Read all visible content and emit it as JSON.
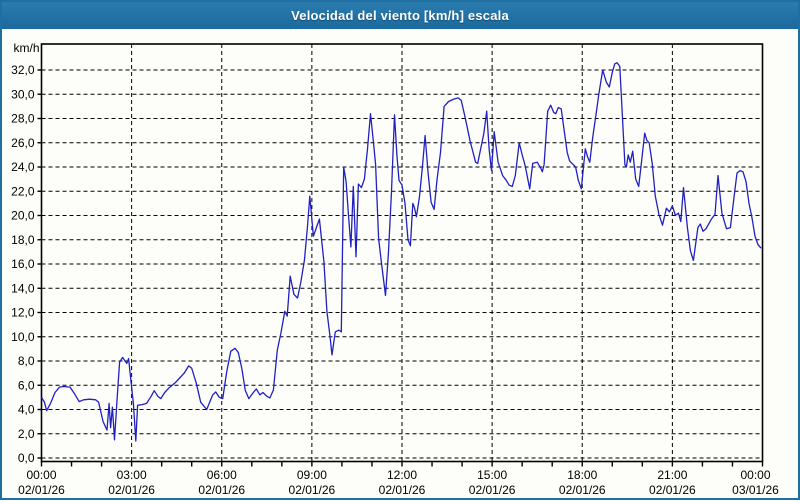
{
  "window": {
    "title": "Velocidad del viento [km/h] escala"
  },
  "colors": {
    "titlebar": "#1f6fa3",
    "window_border": "#1f6fa3",
    "plot_background": "#fdfdfa",
    "grid": "#000000",
    "axis": "#000000",
    "line": "#2121c0",
    "label_text": "#000000",
    "title_text": "#ffffff"
  },
  "chart_data": {
    "type": "line",
    "title": "Velocidad del viento [km/h] escala",
    "ylabel": "km/h",
    "xlabel": "",
    "ylim": [
      0,
      34.1
    ],
    "xlim_hours": [
      0,
      24
    ],
    "grid": "dashed",
    "legend": "none",
    "y_ticks": [
      0,
      2,
      4,
      6,
      8,
      10,
      12,
      14,
      16,
      18,
      20,
      22,
      24,
      26,
      28,
      30,
      32
    ],
    "y_tick_labels": [
      "0,0",
      "2,0",
      "4,0",
      "6,0",
      "8,0",
      "10,0",
      "12,0",
      "14,0",
      "16,0",
      "18,0",
      "20,0",
      "22,0",
      "24,0",
      "26,0",
      "28,0",
      "30,0",
      "32,0"
    ],
    "x_major_ticks": [
      {
        "hour": 0,
        "time": "00:00",
        "date": "02/01/26"
      },
      {
        "hour": 3,
        "time": "03:00",
        "date": "02/01/26"
      },
      {
        "hour": 6,
        "time": "06:00",
        "date": "02/01/26"
      },
      {
        "hour": 9,
        "time": "09:00",
        "date": "02/01/26"
      },
      {
        "hour": 12,
        "time": "12:00",
        "date": "02/01/26"
      },
      {
        "hour": 15,
        "time": "15:00",
        "date": "02/01/26"
      },
      {
        "hour": 18,
        "time": "18:00",
        "date": "02/01/26"
      },
      {
        "hour": 21,
        "time": "21:00",
        "date": "02/01/26"
      },
      {
        "hour": 24,
        "time": "00:00",
        "date": "03/01/26"
      }
    ],
    "x_minor_tick_every_hours": 1,
    "series": [
      {
        "name": "Velocidad del viento",
        "points": [
          [
            0,
            5.0
          ],
          [
            0.1,
            4.6
          ],
          [
            0.17,
            3.9
          ],
          [
            0.3,
            4.5
          ],
          [
            0.45,
            5.4
          ],
          [
            0.6,
            5.85
          ],
          [
            0.75,
            5.9
          ],
          [
            0.95,
            5.85
          ],
          [
            1.1,
            5.3
          ],
          [
            1.25,
            4.65
          ],
          [
            1.4,
            4.8
          ],
          [
            1.6,
            4.85
          ],
          [
            1.8,
            4.8
          ],
          [
            1.9,
            4.6
          ],
          [
            2.05,
            3.0
          ],
          [
            2.18,
            2.3
          ],
          [
            2.25,
            4.5
          ],
          [
            2.3,
            2.5
          ],
          [
            2.36,
            4.2
          ],
          [
            2.43,
            1.5
          ],
          [
            2.52,
            5.0
          ],
          [
            2.6,
            7.9
          ],
          [
            2.7,
            8.3
          ],
          [
            2.78,
            8.0
          ],
          [
            2.84,
            7.8
          ],
          [
            2.9,
            8.2
          ],
          [
            2.98,
            6.3
          ],
          [
            3.06,
            4.5
          ],
          [
            3.14,
            1.4
          ],
          [
            3.2,
            4.35
          ],
          [
            3.35,
            4.4
          ],
          [
            3.5,
            4.5
          ],
          [
            3.65,
            5.1
          ],
          [
            3.75,
            5.55
          ],
          [
            3.87,
            5.1
          ],
          [
            3.97,
            4.9
          ],
          [
            4.1,
            5.4
          ],
          [
            4.25,
            5.8
          ],
          [
            4.45,
            6.2
          ],
          [
            4.6,
            6.6
          ],
          [
            4.75,
            7.0
          ],
          [
            4.9,
            7.6
          ],
          [
            5.0,
            7.4
          ],
          [
            5.15,
            6.2
          ],
          [
            5.3,
            4.6
          ],
          [
            5.5,
            4.0
          ],
          [
            5.7,
            5.2
          ],
          [
            5.8,
            5.45
          ],
          [
            5.92,
            5.0
          ],
          [
            6.03,
            4.9
          ],
          [
            6.17,
            7.2
          ],
          [
            6.3,
            8.8
          ],
          [
            6.44,
            9.05
          ],
          [
            6.55,
            8.7
          ],
          [
            6.67,
            7.35
          ],
          [
            6.78,
            5.6
          ],
          [
            6.9,
            4.9
          ],
          [
            7.02,
            5.3
          ],
          [
            7.15,
            5.7
          ],
          [
            7.27,
            5.2
          ],
          [
            7.37,
            5.4
          ],
          [
            7.5,
            5.1
          ],
          [
            7.6,
            4.95
          ],
          [
            7.72,
            5.6
          ],
          [
            7.85,
            8.9
          ],
          [
            7.97,
            10.3
          ],
          [
            8.1,
            12.1
          ],
          [
            8.18,
            11.7
          ],
          [
            8.28,
            15.0
          ],
          [
            8.4,
            13.5
          ],
          [
            8.52,
            13.2
          ],
          [
            8.63,
            14.5
          ],
          [
            8.75,
            16.3
          ],
          [
            8.85,
            19.0
          ],
          [
            8.93,
            21.6
          ],
          [
            9.05,
            18.3
          ],
          [
            9.15,
            19.0
          ],
          [
            9.25,
            19.7
          ],
          [
            9.4,
            16.2
          ],
          [
            9.5,
            12.1
          ],
          [
            9.6,
            10.1
          ],
          [
            9.67,
            8.5
          ],
          [
            9.78,
            10.4
          ],
          [
            9.9,
            10.55
          ],
          [
            9.98,
            10.4
          ],
          [
            10.06,
            24.0
          ],
          [
            10.14,
            22.8
          ],
          [
            10.22,
            20.0
          ],
          [
            10.3,
            17.4
          ],
          [
            10.38,
            22.4
          ],
          [
            10.47,
            16.6
          ],
          [
            10.55,
            22.6
          ],
          [
            10.65,
            22.3
          ],
          [
            10.75,
            23.0
          ],
          [
            10.85,
            25.5
          ],
          [
            10.95,
            28.4
          ],
          [
            11.05,
            26.0
          ],
          [
            11.12,
            24.2
          ],
          [
            11.22,
            18.1
          ],
          [
            11.32,
            16.0
          ],
          [
            11.45,
            13.4
          ],
          [
            11.55,
            17.0
          ],
          [
            11.65,
            22.0
          ],
          [
            11.75,
            28.3
          ],
          [
            11.83,
            25.0
          ],
          [
            11.9,
            22.9
          ],
          [
            12.0,
            22.5
          ],
          [
            12.1,
            21.0
          ],
          [
            12.2,
            18.0
          ],
          [
            12.28,
            17.5
          ],
          [
            12.36,
            21.0
          ],
          [
            12.42,
            20.6
          ],
          [
            12.48,
            19.9
          ],
          [
            12.58,
            21.5
          ],
          [
            12.68,
            24.0
          ],
          [
            12.77,
            26.6
          ],
          [
            12.87,
            23.5
          ],
          [
            12.97,
            21.1
          ],
          [
            13.07,
            20.5
          ],
          [
            13.17,
            23.0
          ],
          [
            13.28,
            25.2
          ],
          [
            13.4,
            29.0
          ],
          [
            13.55,
            29.4
          ],
          [
            13.72,
            29.6
          ],
          [
            13.87,
            29.7
          ],
          [
            13.97,
            29.5
          ],
          [
            14.1,
            28.1
          ],
          [
            14.27,
            26.1
          ],
          [
            14.45,
            24.4
          ],
          [
            14.52,
            24.3
          ],
          [
            14.62,
            25.5
          ],
          [
            14.72,
            26.7
          ],
          [
            14.82,
            28.6
          ],
          [
            14.9,
            25.5
          ],
          [
            14.98,
            23.7
          ],
          [
            15.07,
            26.9
          ],
          [
            15.2,
            24.4
          ],
          [
            15.35,
            23.3
          ],
          [
            15.47,
            22.9
          ],
          [
            15.57,
            22.5
          ],
          [
            15.67,
            22.4
          ],
          [
            15.77,
            23.3
          ],
          [
            15.9,
            26.0
          ],
          [
            16.0,
            25.0
          ],
          [
            16.1,
            24.1
          ],
          [
            16.25,
            22.2
          ],
          [
            16.35,
            24.3
          ],
          [
            16.5,
            24.4
          ],
          [
            16.62,
            23.9
          ],
          [
            16.67,
            23.6
          ],
          [
            16.73,
            24.2
          ],
          [
            16.85,
            28.6
          ],
          [
            16.95,
            29.1
          ],
          [
            17.05,
            28.5
          ],
          [
            17.12,
            28.4
          ],
          [
            17.2,
            28.9
          ],
          [
            17.3,
            28.8
          ],
          [
            17.4,
            27.0
          ],
          [
            17.5,
            25.2
          ],
          [
            17.58,
            24.5
          ],
          [
            17.7,
            24.2
          ],
          [
            17.78,
            24.0
          ],
          [
            17.87,
            22.9
          ],
          [
            17.97,
            22.2
          ],
          [
            18.1,
            25.5
          ],
          [
            18.18,
            24.8
          ],
          [
            18.25,
            24.4
          ],
          [
            18.35,
            26.5
          ],
          [
            18.45,
            28.2
          ],
          [
            18.55,
            30.0
          ],
          [
            18.68,
            32.0
          ],
          [
            18.8,
            31.0
          ],
          [
            18.9,
            30.6
          ],
          [
            19.0,
            31.8
          ],
          [
            19.08,
            32.5
          ],
          [
            19.16,
            32.6
          ],
          [
            19.25,
            32.3
          ],
          [
            19.33,
            28.5
          ],
          [
            19.42,
            24.2
          ],
          [
            19.47,
            24.0
          ],
          [
            19.53,
            25.0
          ],
          [
            19.6,
            24.4
          ],
          [
            19.68,
            25.3
          ],
          [
            19.78,
            23.0
          ],
          [
            19.88,
            22.4
          ],
          [
            20.0,
            25.0
          ],
          [
            20.08,
            26.8
          ],
          [
            20.15,
            26.2
          ],
          [
            20.23,
            26.0
          ],
          [
            20.33,
            24.3
          ],
          [
            20.43,
            21.6
          ],
          [
            20.55,
            20.1
          ],
          [
            20.67,
            19.2
          ],
          [
            20.8,
            20.6
          ],
          [
            20.9,
            20.3
          ],
          [
            21.0,
            20.8
          ],
          [
            21.1,
            20.0
          ],
          [
            21.2,
            20.2
          ],
          [
            21.28,
            19.5
          ],
          [
            21.37,
            22.3
          ],
          [
            21.5,
            19.0
          ],
          [
            21.6,
            17.1
          ],
          [
            21.7,
            16.3
          ],
          [
            21.85,
            19.0
          ],
          [
            21.93,
            19.3
          ],
          [
            22.02,
            18.7
          ],
          [
            22.12,
            18.9
          ],
          [
            22.3,
            19.7
          ],
          [
            22.42,
            20.1
          ],
          [
            22.52,
            23.3
          ],
          [
            22.65,
            20.2
          ],
          [
            22.8,
            18.9
          ],
          [
            22.93,
            19.0
          ],
          [
            23.05,
            21.5
          ],
          [
            23.15,
            23.5
          ],
          [
            23.25,
            23.7
          ],
          [
            23.35,
            23.6
          ],
          [
            23.45,
            22.8
          ],
          [
            23.55,
            21.0
          ],
          [
            23.65,
            19.8
          ],
          [
            23.75,
            18.3
          ],
          [
            23.85,
            17.6
          ],
          [
            23.95,
            17.3
          ]
        ]
      }
    ]
  }
}
